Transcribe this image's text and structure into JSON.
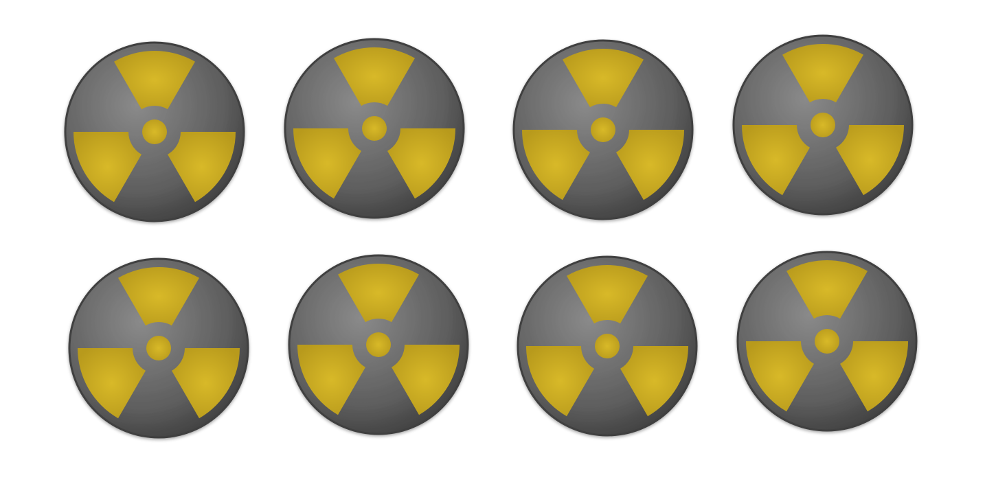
{
  "symbols": {
    "icon": "radiation-trefoil-icon",
    "count": 8,
    "rows": 2,
    "columns": 4
  },
  "colors": {
    "disc": "#5e5e5e",
    "disc_edge": "#3f3f3f",
    "disc_highlight": "#8a8a8a",
    "blade": "#d8b928",
    "blade_dark": "#b89a1c",
    "background": "#ffffff"
  }
}
